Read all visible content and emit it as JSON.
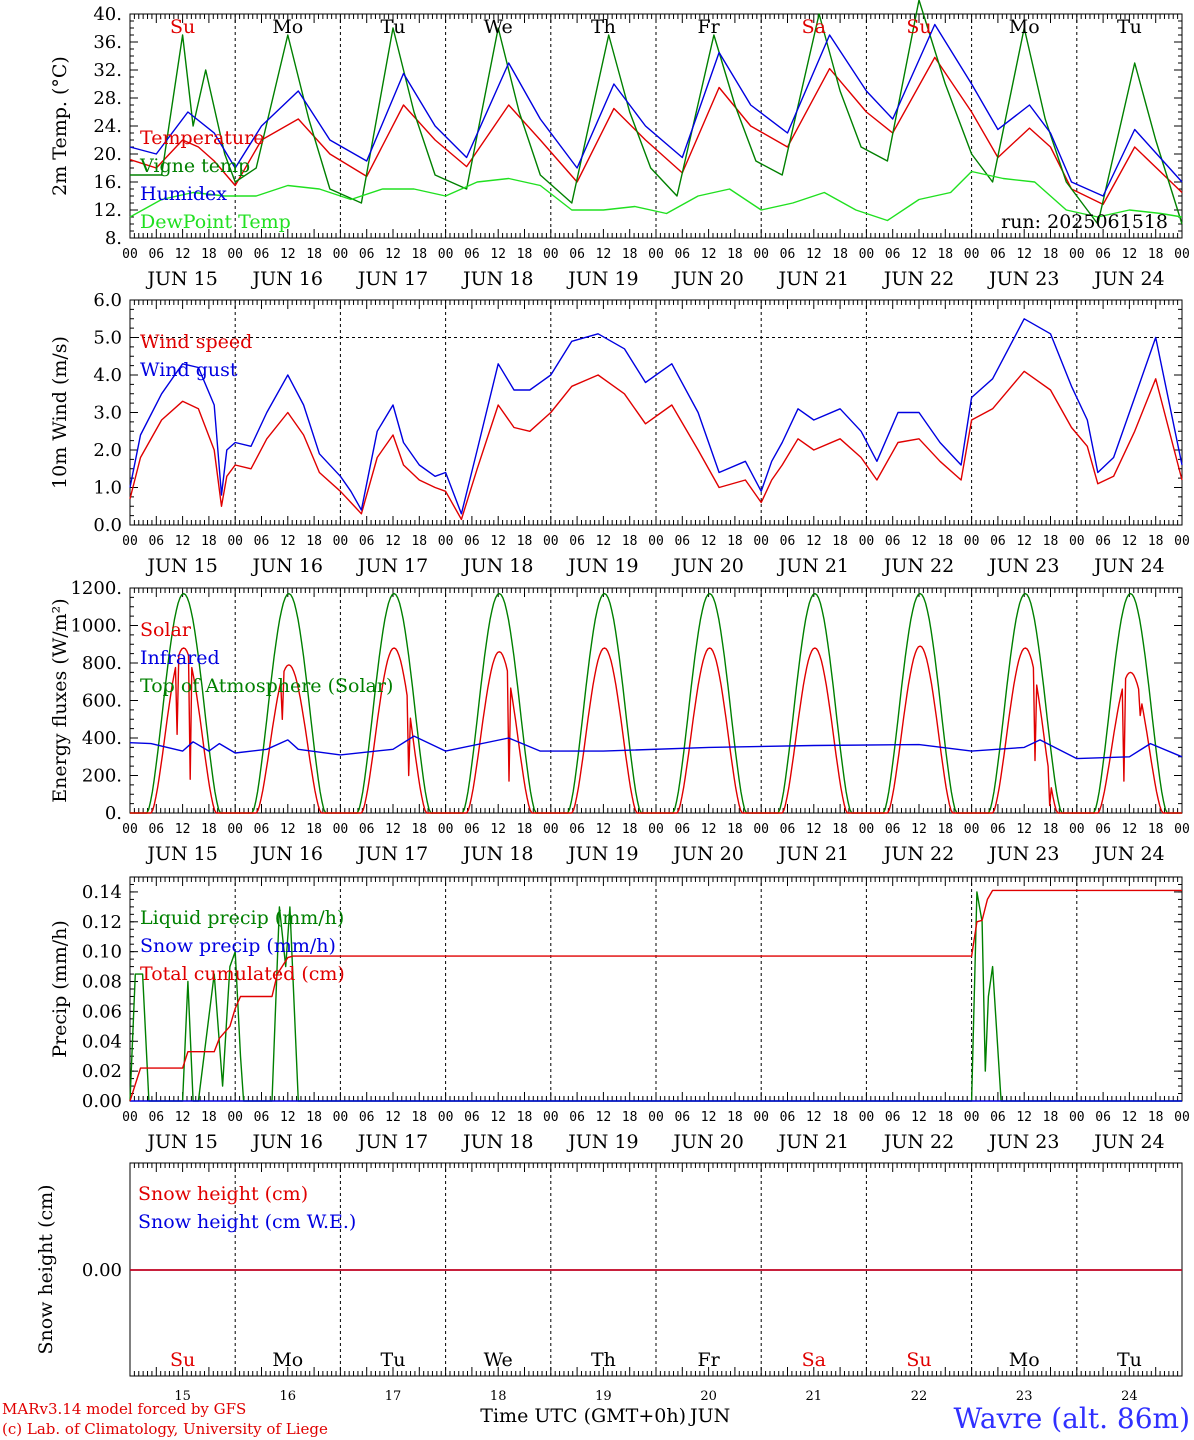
{
  "meta": {
    "run": "run: 2025061518",
    "station": "Wavre (alt. 86m)",
    "credit_line1": "MARv3.14 model forced by GFS",
    "credit_line2": "(c) Lab. of Climatology, University of Liege",
    "time_axis_title": "Time UTC (GMT+0h)",
    "month": "JUN"
  },
  "days": {
    "dates": [
      "JUN 15",
      "JUN 16",
      "JUN 17",
      "JUN 18",
      "JUN 19",
      "JUN 20",
      "JUN 21",
      "JUN 22",
      "JUN 23",
      "JUN 24"
    ],
    "numbers": [
      "15",
      "16",
      "17",
      "18",
      "19",
      "20",
      "21",
      "22",
      "23",
      "24"
    ],
    "weekdays": [
      "Su",
      "Mo",
      "Tu",
      "We",
      "Th",
      "Fr",
      "Sa",
      "Su",
      "Mo",
      "Tu"
    ],
    "weekend": [
      true,
      false,
      false,
      false,
      false,
      false,
      true,
      true,
      false,
      false
    ],
    "hour_labels": [
      "00",
      "06",
      "12",
      "18"
    ],
    "end_label": "00"
  },
  "colors": {
    "red": "#e00000",
    "blue": "#0000e0",
    "green": "#008000",
    "lightgreen": "#20e020",
    "station": "#3030ff",
    "weekend": "#e00000",
    "weekday": "#000000"
  },
  "chart_data": [
    {
      "type": "line",
      "ylabel": "2m Temp. (°C)",
      "ylim": [
        8,
        40
      ],
      "yticks": [
        "40.",
        "36.",
        "32.",
        "28.",
        "24.",
        "20.",
        "16.",
        "12.",
        "8."
      ],
      "grid": "vertical day lines, dashed",
      "x_unit": "days from JUN 15 00 UTC",
      "series": [
        {
          "name": "Temperature",
          "color": "red",
          "x": [
            0,
            0.25,
            0.5,
            0.65,
            0.8,
            1,
            1.25,
            1.6,
            1.9,
            2.25,
            2.6,
            2.9,
            3.2,
            3.6,
            3.9,
            4.25,
            4.6,
            4.9,
            5.25,
            5.6,
            5.9,
            6.25,
            6.65,
            7,
            7.25,
            7.65,
            8,
            8.25,
            8.55,
            8.75,
            8.95,
            9.25,
            9.55,
            10
          ],
          "y": [
            19.2,
            18,
            22,
            21,
            19,
            15.5,
            22,
            25,
            20,
            16.8,
            27,
            22,
            18.2,
            27,
            22,
            16,
            26.5,
            22,
            17.3,
            29.5,
            24,
            21,
            32.2,
            26,
            23,
            33.8,
            26,
            19.5,
            23.7,
            21,
            15,
            12.8,
            21,
            14.5
          ]
        },
        {
          "name": "Vigne temp",
          "color": "green",
          "x": [
            0,
            0.3,
            0.5,
            0.6,
            0.72,
            0.9,
            1,
            1.2,
            1.5,
            1.7,
            1.9,
            2.2,
            2.5,
            2.7,
            2.9,
            3.2,
            3.5,
            3.7,
            3.9,
            4.2,
            4.55,
            4.75,
            4.95,
            5.2,
            5.55,
            5.75,
            5.95,
            6.2,
            6.55,
            6.75,
            6.95,
            7.2,
            7.5,
            7.75,
            8,
            8.2,
            8.5,
            8.7,
            8.9,
            9.2,
            9.55,
            9.75,
            10
          ],
          "y": [
            17,
            17,
            37,
            24,
            32,
            20,
            16,
            18,
            37,
            25,
            15,
            13,
            38,
            26,
            17,
            15,
            38,
            26,
            17,
            13,
            37,
            26,
            18,
            14,
            37,
            27,
            19,
            17,
            40,
            29,
            21,
            19,
            42,
            30,
            20,
            16,
            38,
            25,
            16,
            10,
            33,
            22,
            10
          ]
        },
        {
          "name": "Humidex",
          "color": "blue",
          "x": [
            0,
            0.25,
            0.55,
            0.8,
            1,
            1.25,
            1.6,
            1.9,
            2.25,
            2.6,
            2.9,
            3.2,
            3.6,
            3.9,
            4.25,
            4.6,
            4.9,
            5.25,
            5.6,
            5.9,
            6.25,
            6.65,
            7,
            7.25,
            7.65,
            8,
            8.25,
            8.55,
            8.75,
            8.95,
            9.25,
            9.55,
            10
          ],
          "y": [
            21,
            20,
            26,
            23,
            18,
            24,
            29,
            22,
            19,
            31.5,
            24,
            19.5,
            33,
            25,
            18,
            30,
            24,
            19.5,
            34.5,
            27,
            23,
            37,
            29,
            25,
            38.5,
            30,
            23.5,
            27,
            23,
            16,
            14,
            23.5,
            16
          ]
        },
        {
          "name": "DewPoint Temp",
          "color": "lightgreen",
          "x": [
            0,
            0.3,
            0.6,
            0.9,
            1.2,
            1.5,
            1.8,
            2.1,
            2.4,
            2.7,
            3,
            3.3,
            3.6,
            3.9,
            4.2,
            4.5,
            4.8,
            5.1,
            5.4,
            5.7,
            6,
            6.3,
            6.6,
            6.9,
            7.2,
            7.5,
            7.8,
            8,
            8.3,
            8.6,
            8.9,
            9.2,
            9.5,
            9.8,
            10
          ],
          "y": [
            11,
            13.5,
            14.5,
            14,
            14,
            15.5,
            15,
            13.5,
            15,
            15,
            14,
            16,
            16.5,
            15.5,
            12,
            12,
            12.5,
            11.5,
            14,
            15,
            12,
            13,
            14.5,
            12,
            10.5,
            13.5,
            14.5,
            17.5,
            16.5,
            16,
            12,
            11,
            12,
            11.5,
            11
          ]
        }
      ]
    },
    {
      "type": "line",
      "ylabel": "10m Wind (m/s)",
      "ylim": [
        0,
        6
      ],
      "yticks": [
        "6.0",
        "5.0",
        "4.0",
        "3.0",
        "2.0",
        "1.0",
        "0.0"
      ],
      "reference_line": 5,
      "grid": "vertical day lines, dashed",
      "x_unit": "days from JUN 15 00 UTC",
      "series": [
        {
          "name": "Wind speed",
          "color": "red",
          "x": [
            0,
            0.1,
            0.3,
            0.5,
            0.65,
            0.8,
            0.87,
            0.92,
            1,
            1.15,
            1.3,
            1.5,
            1.65,
            1.8,
            2,
            2.1,
            2.2,
            2.35,
            2.5,
            2.6,
            2.75,
            2.9,
            3,
            3.15,
            3.3,
            3.5,
            3.65,
            3.8,
            4,
            4.2,
            4.45,
            4.7,
            4.9,
            5.15,
            5.4,
            5.6,
            5.85,
            6,
            6.1,
            6.2,
            6.35,
            6.5,
            6.75,
            6.95,
            7.1,
            7.3,
            7.5,
            7.7,
            7.9,
            8,
            8.2,
            8.5,
            8.75,
            8.95,
            9.1,
            9.2,
            9.35,
            9.55,
            9.75,
            10
          ],
          "y": [
            0.7,
            1.8,
            2.8,
            3.3,
            3.1,
            2,
            0.5,
            1.3,
            1.6,
            1.5,
            2.3,
            3,
            2.4,
            1.4,
            0.9,
            0.6,
            0.3,
            1.8,
            2.4,
            1.6,
            1.2,
            1,
            0.9,
            0.15,
            1.5,
            3.2,
            2.6,
            2.5,
            3,
            3.7,
            4,
            3.5,
            2.7,
            3.2,
            2,
            1,
            1.2,
            0.6,
            1.2,
            1.6,
            2.3,
            2,
            2.3,
            1.8,
            1.2,
            2.2,
            2.3,
            1.7,
            1.2,
            2.8,
            3.1,
            4.1,
            3.6,
            2.6,
            2.1,
            1.1,
            1.3,
            2.5,
            3.9,
            1.2
          ]
        },
        {
          "name": "Wind gust",
          "color": "blue",
          "x": [
            0,
            0.1,
            0.3,
            0.5,
            0.65,
            0.8,
            0.87,
            0.92,
            1,
            1.15,
            1.3,
            1.5,
            1.65,
            1.8,
            2,
            2.1,
            2.2,
            2.35,
            2.5,
            2.6,
            2.75,
            2.9,
            3,
            3.15,
            3.3,
            3.5,
            3.65,
            3.8,
            4,
            4.2,
            4.45,
            4.7,
            4.9,
            5.15,
            5.4,
            5.6,
            5.85,
            6,
            6.1,
            6.2,
            6.35,
            6.5,
            6.75,
            6.95,
            7.1,
            7.3,
            7.5,
            7.7,
            7.9,
            8,
            8.2,
            8.5,
            8.75,
            8.95,
            9.1,
            9.2,
            9.35,
            9.55,
            9.75,
            10
          ],
          "y": [
            1,
            2.4,
            3.5,
            4.3,
            4.2,
            3.2,
            0.8,
            2,
            2.2,
            2.1,
            3,
            4,
            3.2,
            1.9,
            1.3,
            0.9,
            0.4,
            2.5,
            3.2,
            2.2,
            1.6,
            1.3,
            1.4,
            0.3,
            2,
            4.3,
            3.6,
            3.6,
            4,
            4.9,
            5.1,
            4.7,
            3.8,
            4.3,
            3,
            1.4,
            1.7,
            0.9,
            1.7,
            2.2,
            3.1,
            2.8,
            3.1,
            2.5,
            1.7,
            3,
            3,
            2.2,
            1.6,
            3.4,
            3.9,
            5.5,
            5.1,
            3.7,
            2.8,
            1.4,
            1.8,
            3.4,
            5,
            1.6
          ]
        }
      ]
    },
    {
      "type": "line",
      "ylabel": "Energy fluxes (W/m²)",
      "ylim": [
        0,
        1200
      ],
      "yticks": [
        "1200.",
        "1000.",
        "800.",
        "600.",
        "400.",
        "200.",
        "0."
      ],
      "grid": "vertical day lines, dashed",
      "x_unit": "days from JUN 15 00 UTC",
      "series": [
        {
          "name": "Solar",
          "color": "red",
          "day_peak": [
            880,
            790,
            880,
            860,
            880,
            880,
            880,
            890,
            880,
            750
          ],
          "dips": [
            {
              "x": 0.57,
              "y": 180
            },
            {
              "x": 0.45,
              "y": 420
            },
            {
              "x": 1.45,
              "y": 500
            },
            {
              "x": 2.65,
              "y": 200
            },
            {
              "x": 3.6,
              "y": 170
            },
            {
              "x": 8.6,
              "y": 280
            },
            {
              "x": 8.75,
              "y": 40
            },
            {
              "x": 9.45,
              "y": 170
            },
            {
              "x": 9.6,
              "y": 520
            }
          ]
        },
        {
          "name": "Infrared",
          "color": "blue",
          "x": [
            0,
            0.2,
            0.5,
            0.6,
            0.75,
            0.85,
            1,
            1.3,
            1.5,
            1.6,
            2,
            2.5,
            2.7,
            3,
            3.6,
            3.9,
            4.5,
            5.5,
            6.5,
            7.5,
            8,
            8.5,
            8.65,
            9,
            9.5,
            9.7,
            10
          ],
          "y": [
            375,
            370,
            330,
            380,
            330,
            370,
            320,
            340,
            390,
            340,
            310,
            340,
            410,
            330,
            400,
            330,
            330,
            350,
            360,
            365,
            330,
            350,
            390,
            290,
            300,
            370,
            300
          ]
        },
        {
          "name": "Top of Atmosphere (Solar)",
          "color": "green",
          "day_peak": [
            1170,
            1170,
            1170,
            1170,
            1170,
            1170,
            1170,
            1170,
            1170,
            1170
          ]
        }
      ]
    },
    {
      "type": "line",
      "ylabel": "Precip (mm/h)",
      "ylim": [
        0,
        0.15
      ],
      "yticks": [
        "0.14",
        "0.12",
        "0.10",
        "0.08",
        "0.06",
        "0.04",
        "0.02",
        "0.00"
      ],
      "grid": "vertical day lines, dashed",
      "x_unit": "days from JUN 15 00 UTC",
      "series": [
        {
          "name": "Liquid precip (mm/h)",
          "color": "green",
          "x": [
            0,
            0.05,
            0.12,
            0.18,
            0.25,
            0.5,
            0.55,
            0.6,
            0.65,
            0.8,
            0.88,
            0.95,
            1,
            1.05,
            1.08,
            1.35,
            1.42,
            1.48,
            1.52,
            1.6,
            1.7,
            8,
            8.05,
            8.1,
            8.13,
            8.16,
            8.2,
            8.28,
            8.35,
            10
          ],
          "y": [
            0,
            0.085,
            0.085,
            0,
            0,
            0,
            0.08,
            0,
            0,
            0.085,
            0.01,
            0.09,
            0.1,
            0.03,
            0,
            0,
            0.13,
            0.09,
            0.13,
            0,
            0,
            0,
            0.14,
            0.12,
            0.02,
            0.07,
            0.09,
            0,
            0,
            0
          ]
        },
        {
          "name": "Snow precip (mm/h)",
          "color": "blue",
          "x": [
            0,
            10
          ],
          "y": [
            0,
            0
          ]
        },
        {
          "name": "Total cumulated (cm)",
          "color": "red",
          "x": [
            0,
            0.1,
            0.5,
            0.55,
            0.8,
            0.85,
            0.95,
            1,
            1.05,
            1.35,
            1.4,
            1.5,
            1.55,
            8,
            8.05,
            8.1,
            8.15,
            8.2,
            10
          ],
          "y": [
            0,
            0.022,
            0.022,
            0.033,
            0.033,
            0.042,
            0.05,
            0.062,
            0.07,
            0.07,
            0.085,
            0.096,
            0.097,
            0.097,
            0.12,
            0.121,
            0.135,
            0.141,
            0.141
          ]
        }
      ]
    },
    {
      "type": "line",
      "ylabel": "Snow height (cm)",
      "yticks": [
        "0.00"
      ],
      "x_unit": "days from JUN 15 00 UTC",
      "series": [
        {
          "name": "Snow height (cm)",
          "color": "red",
          "x": [
            0,
            10
          ],
          "y": [
            0,
            0
          ]
        },
        {
          "name": "Snow height (cm W.E.)",
          "color": "blue",
          "x": [
            0,
            10
          ],
          "y": [
            0,
            0
          ]
        }
      ]
    }
  ]
}
